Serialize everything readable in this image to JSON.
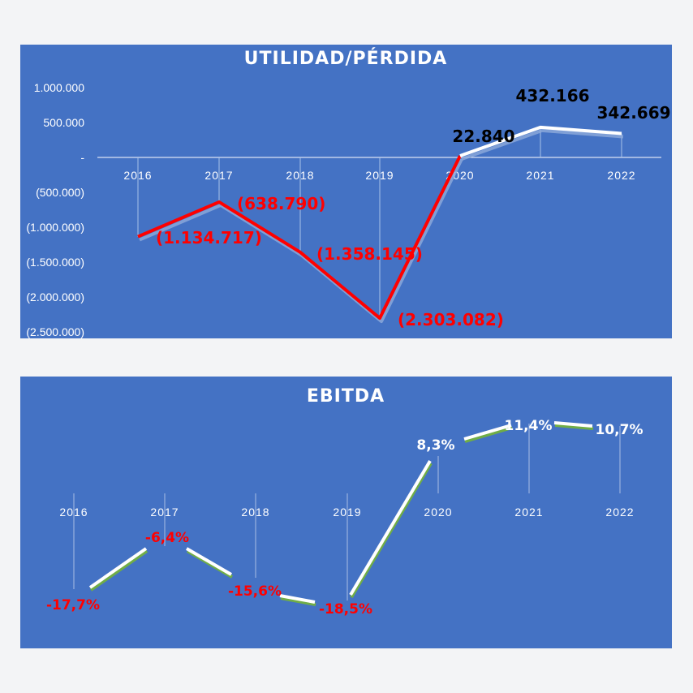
{
  "chart_data": [
    {
      "type": "line",
      "title": "UTILIDAD/PÉRDIDA",
      "categories": [
        "2016",
        "2017",
        "2018",
        "2019",
        "2020",
        "2021",
        "2022"
      ],
      "values": [
        -1134717,
        -638790,
        -1358145,
        -2303082,
        22840,
        432166,
        342669
      ],
      "data_labels": [
        "(1.134.717)",
        "(638.790)",
        "(1.358.145)",
        "(2.303.082)",
        "22.840",
        "432.166",
        "342.669"
      ],
      "ytick_values": [
        1000000,
        500000,
        0,
        -500000,
        -1000000,
        -1500000,
        -2000000,
        -2500000
      ],
      "ytick_labels": [
        "1.000.000",
        "500.000",
        "-",
        "(500.000)",
        "(1.000.000)",
        "(1.500.000)",
        "(2.000.000)",
        "(2.500.000)"
      ],
      "ylim": [
        -2500000,
        1000000
      ],
      "colors": {
        "negative": "#ff0000",
        "positive": "#ffffff",
        "positive_label": "#000000",
        "negative_label": "#ff0000"
      }
    },
    {
      "type": "line",
      "title": "EBITDA",
      "categories": [
        "2016",
        "2017",
        "2018",
        "2019",
        "2020",
        "2021",
        "2022"
      ],
      "values": [
        -17.7,
        -6.4,
        -15.6,
        -18.5,
        8.3,
        11.4,
        10.7
      ],
      "data_labels": [
        "-17,7%",
        "-6,4%",
        "-15,6%",
        "-18,5%",
        "8,3%",
        "11,4%",
        "10,7%"
      ],
      "colors": {
        "line": "#ffffff",
        "shadow": "#70ad47",
        "negative_label": "#ff0000",
        "positive_label": "#ffffff"
      }
    }
  ]
}
